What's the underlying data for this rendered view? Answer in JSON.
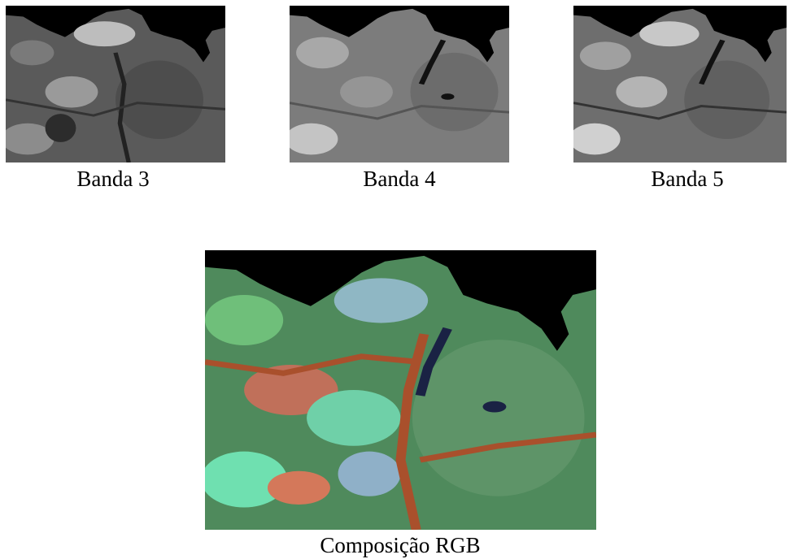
{
  "panels": [
    {
      "caption": "Banda 3"
    },
    {
      "caption": "Banda 4"
    },
    {
      "caption": "Banda 5"
    }
  ],
  "composite": {
    "caption": "Composição RGB"
  }
}
